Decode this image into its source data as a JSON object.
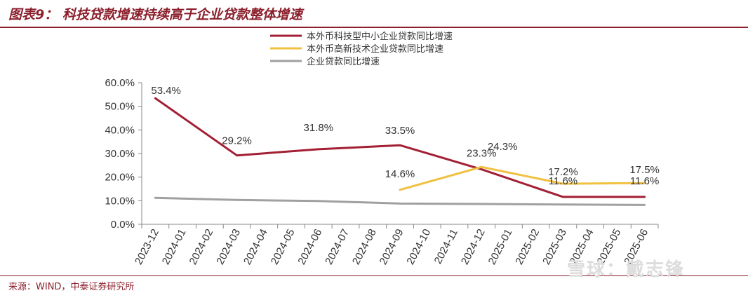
{
  "header": {
    "title": "图表9：  科技贷款增速持续高于企业贷款整体增速"
  },
  "footer": {
    "source": "来源：WIND，中泰证券研究所"
  },
  "watermark": {
    "text": "雪球：戴志锋"
  },
  "colors": {
    "brand": "#8b1f2c",
    "series_red": "#a31f34",
    "series_yellow": "#f0c040",
    "series_gray": "#a0a0a0"
  },
  "chart_data": {
    "type": "line",
    "categories": [
      "2023-12",
      "2024-01",
      "2024-02",
      "2024-03",
      "2024-04",
      "2024-05",
      "2024-06",
      "2024-07",
      "2024-08",
      "2024-09",
      "2024-10",
      "2024-11",
      "2024-12",
      "2025-01",
      "2025-02",
      "2025-03",
      "2025-04",
      "2025-05",
      "2025-06"
    ],
    "ylim": [
      0,
      60
    ],
    "yticks": [
      0,
      10,
      20,
      30,
      40,
      50,
      60
    ],
    "ytick_labels": [
      "0.0%",
      "10.0%",
      "20.0%",
      "30.0%",
      "40.0%",
      "50.0%",
      "60.0%"
    ],
    "legend_position": "top-center",
    "grid": false,
    "series": [
      {
        "name": "本外币科技型中小企业贷款同比增速",
        "color": "#a31f34",
        "points": [
          [
            0,
            53.4
          ],
          [
            3,
            29.2
          ],
          [
            6,
            31.8
          ],
          [
            9,
            33.5
          ],
          [
            12,
            23.3
          ],
          [
            15,
            11.6
          ],
          [
            18,
            11.6
          ]
        ],
        "labels": [
          {
            "index": 0,
            "text": "53.4%"
          },
          {
            "index": 3,
            "text": "29.2%"
          },
          {
            "index": 6,
            "text": "31.8%"
          },
          {
            "index": 9,
            "text": "33.5%"
          },
          {
            "index": 12,
            "text": "23.3%"
          },
          {
            "index": 15,
            "text": "11.6%"
          },
          {
            "index": 18,
            "text": "11.6%"
          }
        ]
      },
      {
        "name": "本外币高新技术企业贷款同比增速",
        "color": "#f0c040",
        "points": [
          [
            9,
            14.6
          ],
          [
            12,
            24.3
          ],
          [
            15,
            17.2
          ],
          [
            18,
            17.5
          ]
        ],
        "labels": [
          {
            "index": 9,
            "text": "14.6%"
          },
          {
            "index": 12,
            "text": "24.3%"
          },
          {
            "index": 15,
            "text": "17.2%"
          },
          {
            "index": 18,
            "text": "17.5%"
          }
        ]
      },
      {
        "name": "企业贷款同比增速",
        "color": "#a0a0a0",
        "points": [
          [
            0,
            11.2
          ],
          [
            3,
            10.3
          ],
          [
            6,
            9.9
          ],
          [
            9,
            8.8
          ],
          [
            12,
            8.6
          ],
          [
            15,
            8.4
          ],
          [
            18,
            8.2
          ]
        ],
        "labels": []
      }
    ]
  }
}
